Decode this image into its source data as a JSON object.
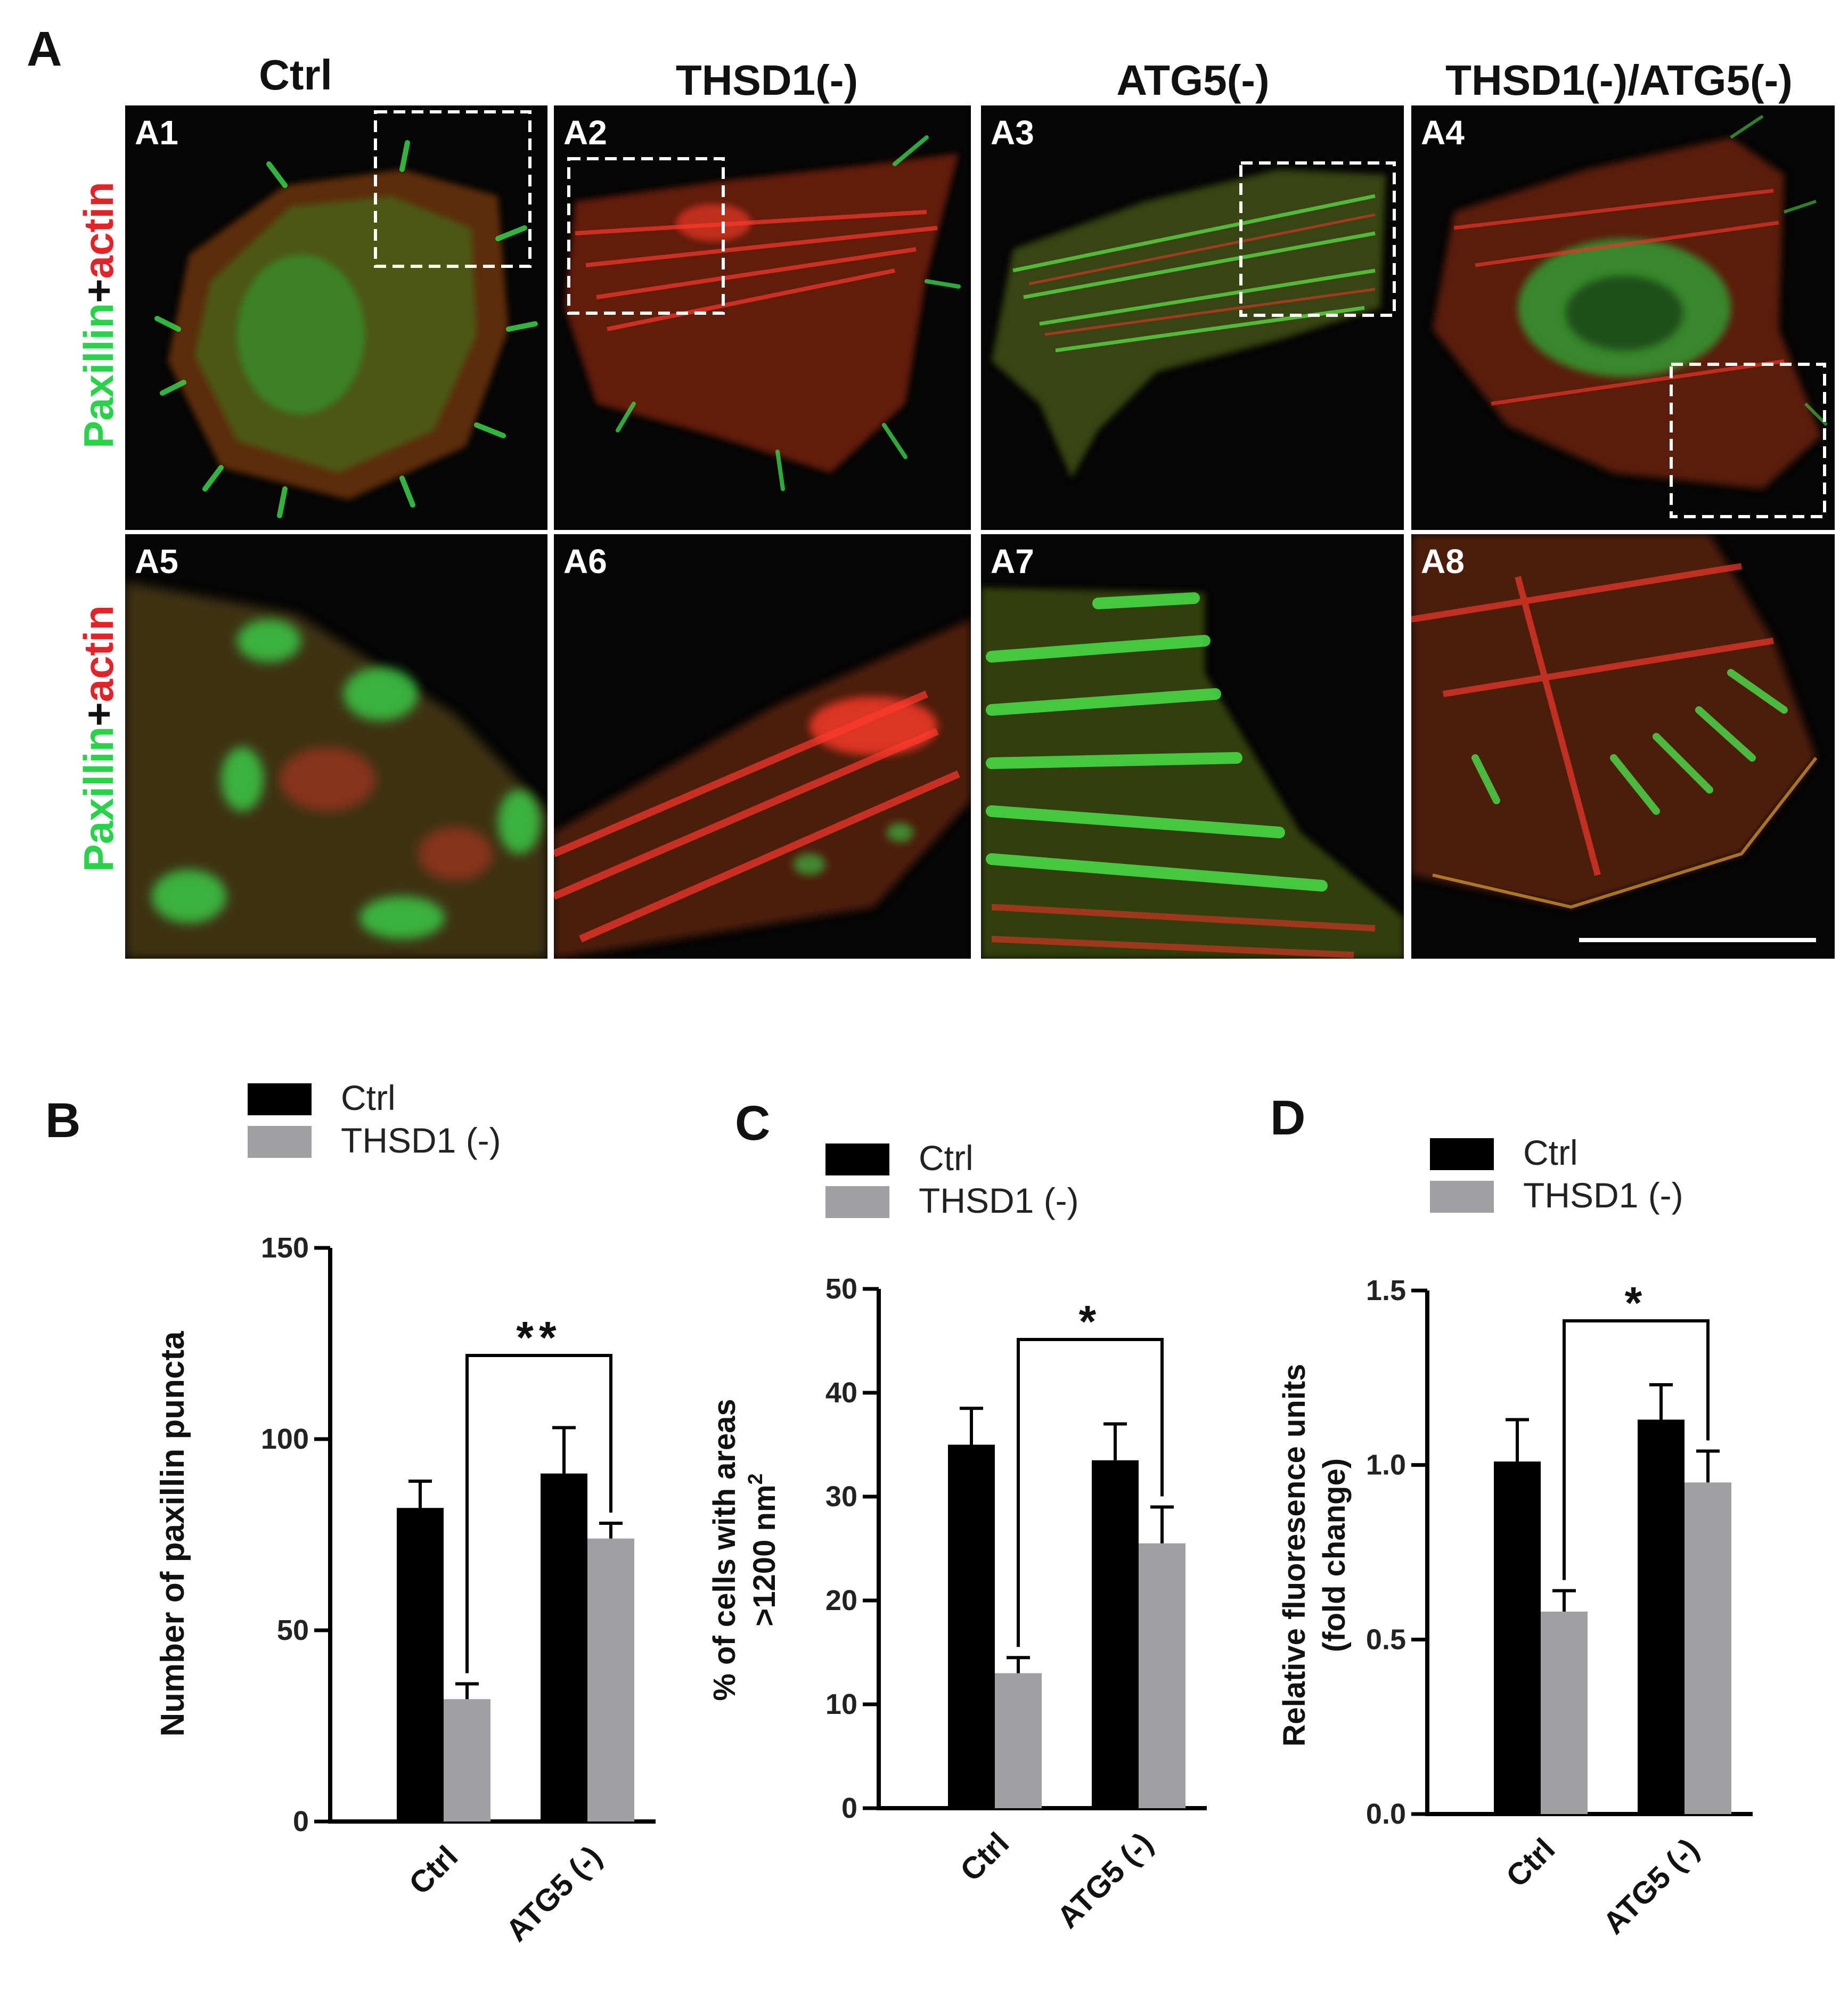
{
  "panel_A": {
    "letter": "A",
    "column_titles": [
      "Ctrl",
      "THSD1(-)",
      "ATG5(-)",
      "THSD1(-)/ATG5(-)"
    ],
    "row_label": {
      "green": "Paxillin",
      "plus": "+",
      "red": "actin"
    },
    "tiles_top": [
      "A1",
      "A2",
      "A3",
      "A4"
    ],
    "tiles_bottom": [
      "A5",
      "A6",
      "A7",
      "A8"
    ]
  },
  "colors": {
    "black_bar": "#000000",
    "gray_bar": "#a0a0a3",
    "green": "#2ad24a",
    "red": "#e0242a"
  },
  "chart_data": [
    {
      "type": "bar",
      "panel": "B",
      "categories": [
        "Ctrl",
        "ATG5 (-)"
      ],
      "series": [
        {
          "name": "Ctrl",
          "values": [
            82,
            91
          ],
          "errors": [
            7,
            12
          ],
          "color": "#000000"
        },
        {
          "name": "THSD1 (-)",
          "values": [
            32,
            74
          ],
          "errors": [
            4,
            4
          ],
          "color": "#a0a0a3"
        }
      ],
      "ylabel": "Number of paxillin puncta",
      "ylim": [
        0,
        150
      ],
      "yticks": [
        "0",
        "50",
        "100",
        "150"
      ],
      "significance": "**"
    },
    {
      "type": "bar",
      "panel": "C",
      "categories": [
        "Ctrl",
        "ATG5 (-)"
      ],
      "series": [
        {
          "name": "Ctrl",
          "values": [
            35,
            33.5
          ],
          "errors": [
            3.5,
            3.5
          ],
          "color": "#000000"
        },
        {
          "name": "THSD1 (-)",
          "values": [
            13,
            25.5
          ],
          "errors": [
            1.5,
            3.5
          ],
          "color": "#a0a0a3"
        }
      ],
      "ylabel": "% of cells with areas",
      "ylabel2": ">1200 nm",
      "ylabel2_sup": "2",
      "ylim": [
        0,
        50
      ],
      "yticks": [
        "0",
        "10",
        "20",
        "30",
        "40",
        "50"
      ],
      "significance": "*"
    },
    {
      "type": "bar",
      "panel": "D",
      "categories": [
        "Ctrl",
        "ATG5 (-)"
      ],
      "series": [
        {
          "name": "Ctrl",
          "values": [
            1.01,
            1.13
          ],
          "errors": [
            0.12,
            0.1
          ],
          "color": "#000000"
        },
        {
          "name": "THSD1 (-)",
          "values": [
            0.58,
            0.95
          ],
          "errors": [
            0.06,
            0.09
          ],
          "color": "#a0a0a3"
        }
      ],
      "ylabel": "Relative fluoresence units",
      "ylabel2": "(fold change)",
      "ylim": [
        0,
        1.5
      ],
      "yticks": [
        "0.0",
        "0.5",
        "1.0",
        "1.5"
      ],
      "significance": "*"
    }
  ]
}
